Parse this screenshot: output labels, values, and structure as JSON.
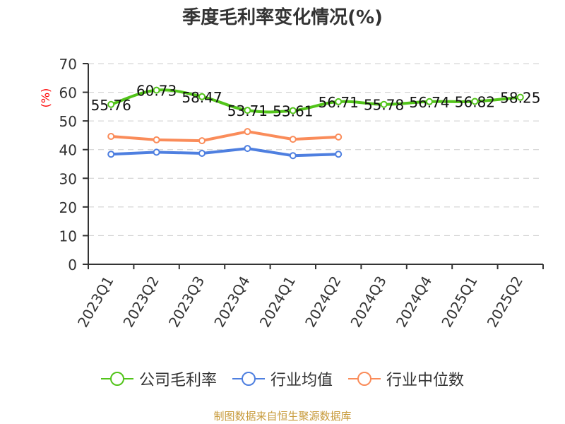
{
  "title": "季度毛利率变化情况(%)",
  "footer": "制图数据来自恒生聚源数据库",
  "colors": {
    "company": "#52c41a",
    "industry_avg": "#4e7fe0",
    "industry_median": "#fa8c5a",
    "unit": "#ff0000",
    "footer": "#c79a3a"
  },
  "legend": [
    {
      "label": "公司毛利率",
      "color": "#52c41a"
    },
    {
      "label": "行业均值",
      "color": "#4e7fe0"
    },
    {
      "label": "行业中位数",
      "color": "#fa8c5a"
    }
  ],
  "chart_data": {
    "type": "line",
    "title": "季度毛利率变化情况(%)",
    "xlabel": "",
    "ylabel": "(%)",
    "ylim": [
      0,
      70
    ],
    "yticks": [
      0,
      10,
      20,
      30,
      40,
      50,
      60,
      70
    ],
    "grid": true,
    "legend_position": "bottom",
    "categories": [
      "2023Q1",
      "2023Q2",
      "2023Q3",
      "2023Q4",
      "2024Q1",
      "2024Q2",
      "2024Q3",
      "2024Q4",
      "2025Q1",
      "2025Q2"
    ],
    "series": [
      {
        "name": "公司毛利率",
        "values": [
          55.76,
          60.73,
          58.47,
          53.71,
          53.61,
          56.71,
          55.78,
          56.74,
          56.82,
          58.25
        ],
        "labels": [
          "55.76",
          "60.73",
          "58.47",
          "53.71",
          "53.61",
          "56.71",
          "55.78",
          "56.74",
          "56.82",
          "58.25"
        ]
      },
      {
        "name": "行业均值",
        "values": [
          38.4,
          39.1,
          38.7,
          40.4,
          37.9,
          38.4,
          null,
          null,
          null,
          null
        ]
      },
      {
        "name": "行业中位数",
        "values": [
          44.6,
          43.4,
          43.1,
          46.3,
          43.6,
          44.4,
          null,
          null,
          null,
          null
        ]
      }
    ]
  }
}
